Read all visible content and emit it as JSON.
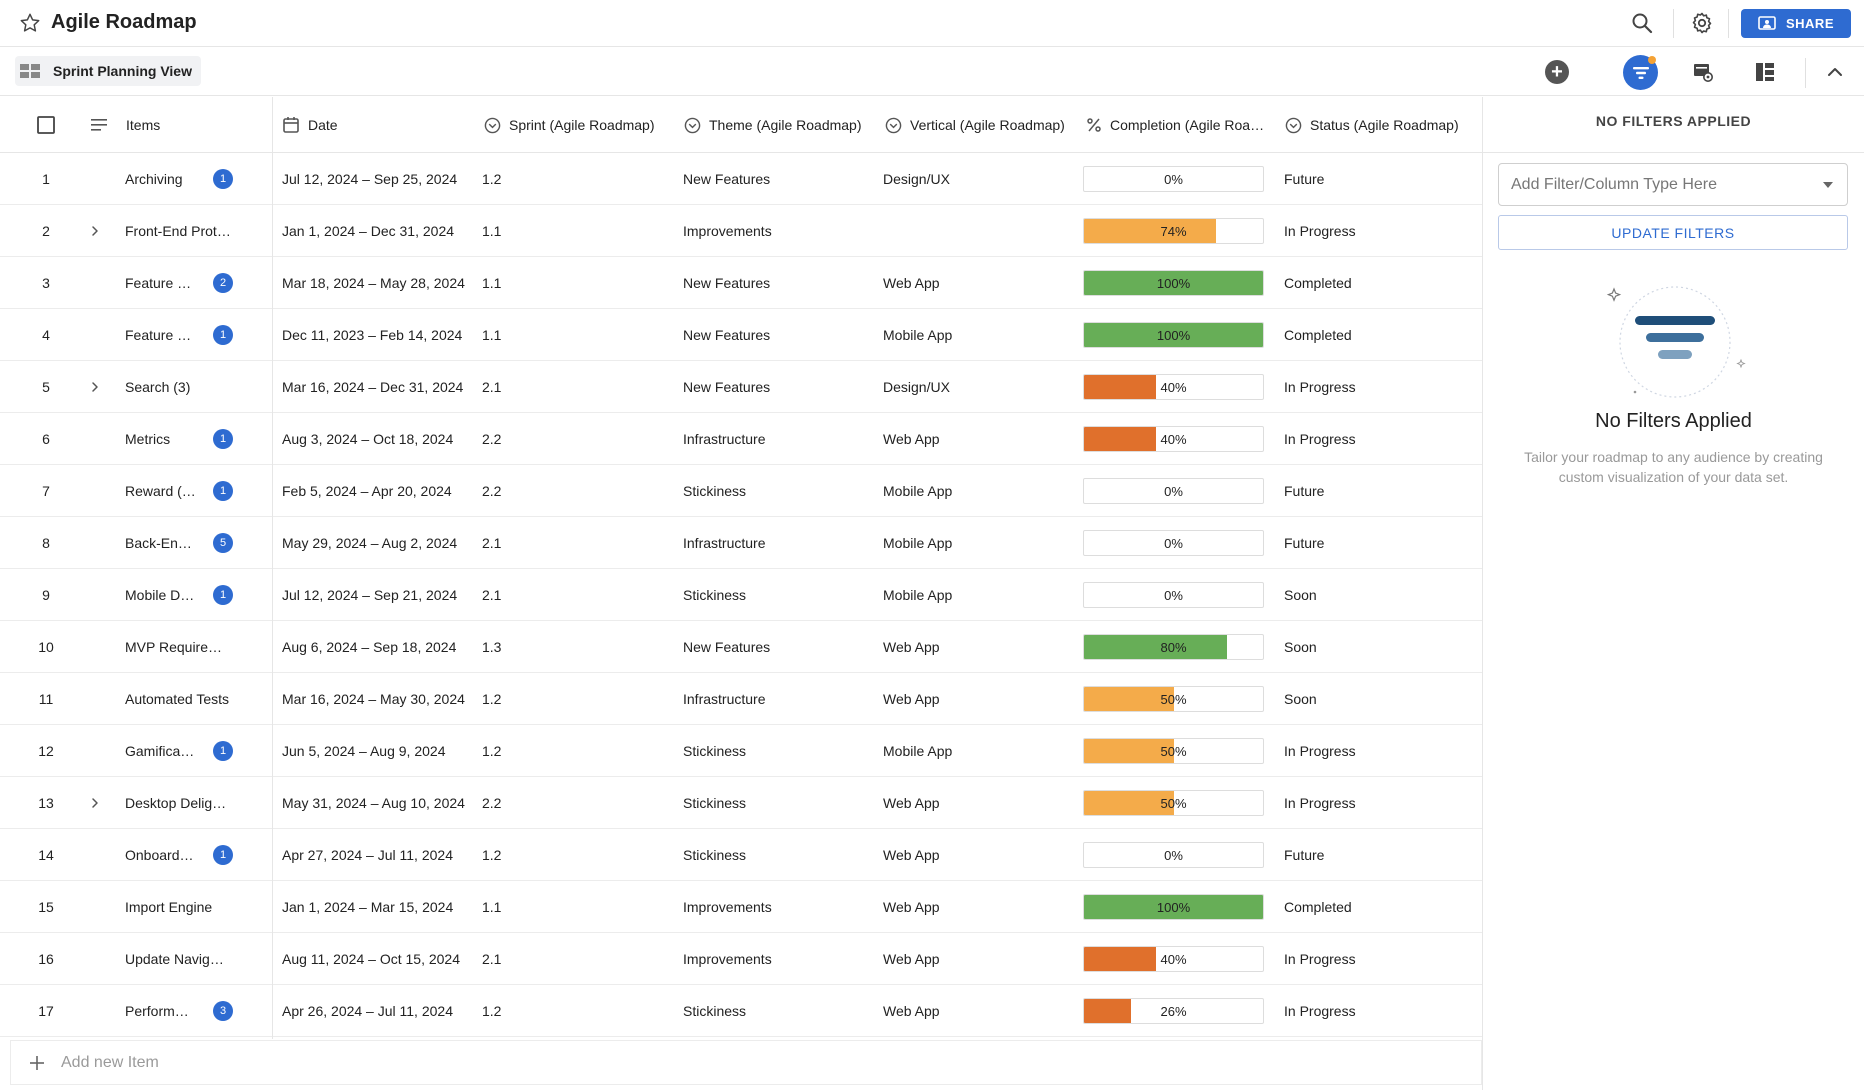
{
  "app": {
    "title": "Agile Roadmap",
    "share_label": "SHARE"
  },
  "toolbar": {
    "view_name": "Sprint Planning View"
  },
  "columns": {
    "items": "Items",
    "date": "Date",
    "sprint": "Sprint (Agile Roadmap)",
    "theme": "Theme (Agile Roadmap)",
    "vertical": "Vertical (Agile Roadmap)",
    "completion": "Completion (Agile Roa…",
    "status": "Status (Agile Roadmap)"
  },
  "rows": [
    {
      "num": "1",
      "expand": false,
      "item": "Archiving",
      "badge": "1",
      "date": "Jul 12, 2024 – Sep 25, 2024",
      "sprint": "1.2",
      "theme": "New Features",
      "vertical": "Design/UX",
      "completion": 0,
      "completion_label": "0%",
      "color": "",
      "status": "Future"
    },
    {
      "num": "2",
      "expand": true,
      "item": "Front-End Prot…",
      "badge": "",
      "date": "Jan 1, 2024 – Dec 31, 2024",
      "sprint": "1.1",
      "theme": "Improvements",
      "vertical": "",
      "completion": 74,
      "completion_label": "74%",
      "color": "#f4ab4a",
      "status": "In Progress"
    },
    {
      "num": "3",
      "expand": false,
      "item": "Feature …",
      "badge": "2",
      "date": "Mar 18, 2024 – May 28, 2024",
      "sprint": "1.1",
      "theme": "New Features",
      "vertical": "Web App",
      "completion": 100,
      "completion_label": "100%",
      "color": "#67ae57",
      "status": "Completed"
    },
    {
      "num": "4",
      "expand": false,
      "item": "Feature …",
      "badge": "1",
      "date": "Dec 11, 2023 – Feb 14, 2024",
      "sprint": "1.1",
      "theme": "New Features",
      "vertical": "Mobile App",
      "completion": 100,
      "completion_label": "100%",
      "color": "#67ae57",
      "status": "Completed"
    },
    {
      "num": "5",
      "expand": true,
      "item": "Search (3)",
      "badge": "",
      "date": "Mar 16, 2024 – Dec 31, 2024",
      "sprint": "2.1",
      "theme": "New Features",
      "vertical": "Design/UX",
      "completion": 40,
      "completion_label": "40%",
      "color": "#e0702c",
      "status": "In Progress"
    },
    {
      "num": "6",
      "expand": false,
      "item": "Metrics",
      "badge": "1",
      "date": "Aug 3, 2024 – Oct 18, 2024",
      "sprint": "2.2",
      "theme": "Infrastructure",
      "vertical": "Web App",
      "completion": 40,
      "completion_label": "40%",
      "color": "#e0702c",
      "status": "In Progress"
    },
    {
      "num": "7",
      "expand": false,
      "item": "Reward (…",
      "badge": "1",
      "date": "Feb 5, 2024 – Apr 20, 2024",
      "sprint": "2.2",
      "theme": "Stickiness",
      "vertical": "Mobile App",
      "completion": 0,
      "completion_label": "0%",
      "color": "",
      "status": "Future"
    },
    {
      "num": "8",
      "expand": false,
      "item": "Back-En…",
      "badge": "5",
      "date": "May 29, 2024 – Aug 2, 2024",
      "sprint": "2.1",
      "theme": "Infrastructure",
      "vertical": "Mobile App",
      "completion": 0,
      "completion_label": "0%",
      "color": "",
      "status": "Future"
    },
    {
      "num": "9",
      "expand": false,
      "item": "Mobile D…",
      "badge": "1",
      "date": "Jul 12, 2024 – Sep 21, 2024",
      "sprint": "2.1",
      "theme": "Stickiness",
      "vertical": "Mobile App",
      "completion": 0,
      "completion_label": "0%",
      "color": "",
      "status": "Soon"
    },
    {
      "num": "10",
      "expand": false,
      "item": "MVP Require…",
      "badge": "",
      "date": "Aug 6, 2024 – Sep 18, 2024",
      "sprint": "1.3",
      "theme": "New Features",
      "vertical": "Web App",
      "completion": 80,
      "completion_label": "80%",
      "color": "#67ae57",
      "status": "Soon"
    },
    {
      "num": "11",
      "expand": false,
      "item": "Automated Tests",
      "badge": "",
      "date": "Mar 16, 2024 – May 30, 2024",
      "sprint": "1.2",
      "theme": "Infrastructure",
      "vertical": "Web App",
      "completion": 50,
      "completion_label": "50%",
      "color": "#f4ab4a",
      "status": "Soon"
    },
    {
      "num": "12",
      "expand": false,
      "item": "Gamifica…",
      "badge": "1",
      "date": "Jun 5, 2024 – Aug 9, 2024",
      "sprint": "1.2",
      "theme": "Stickiness",
      "vertical": "Mobile App",
      "completion": 50,
      "completion_label": "50%",
      "color": "#f4ab4a",
      "status": "In Progress"
    },
    {
      "num": "13",
      "expand": true,
      "item": "Desktop Delig…",
      "badge": "",
      "date": "May 31, 2024 – Aug 10, 2024",
      "sprint": "2.2",
      "theme": "Stickiness",
      "vertical": "Web App",
      "completion": 50,
      "completion_label": "50%",
      "color": "#f4ab4a",
      "status": "In Progress"
    },
    {
      "num": "14",
      "expand": false,
      "item": "Onboard…",
      "badge": "1",
      "date": "Apr 27, 2024 – Jul 11, 2024",
      "sprint": "1.2",
      "theme": "Stickiness",
      "vertical": "Web App",
      "completion": 0,
      "completion_label": "0%",
      "color": "",
      "status": "Future"
    },
    {
      "num": "15",
      "expand": false,
      "item": "Import Engine",
      "badge": "",
      "date": "Jan 1, 2024 – Mar 15, 2024",
      "sprint": "1.1",
      "theme": "Improvements",
      "vertical": "Web App",
      "completion": 100,
      "completion_label": "100%",
      "color": "#67ae57",
      "status": "Completed"
    },
    {
      "num": "16",
      "expand": false,
      "item": "Update Navig…",
      "badge": "",
      "date": "Aug 11, 2024 – Oct 15, 2024",
      "sprint": "2.1",
      "theme": "Improvements",
      "vertical": "Web App",
      "completion": 40,
      "completion_label": "40%",
      "color": "#e0702c",
      "status": "In Progress"
    },
    {
      "num": "17",
      "expand": false,
      "item": "Perform…",
      "badge": "3",
      "date": "Apr 26, 2024 – Jul 11, 2024",
      "sprint": "1.2",
      "theme": "Stickiness",
      "vertical": "Web App",
      "completion": 26,
      "completion_label": "26%",
      "color": "#e0702c",
      "status": "In Progress"
    }
  ],
  "add_item": {
    "placeholder": "Add new Item"
  },
  "filters": {
    "header": "NO FILTERS APPLIED",
    "select_placeholder": "Add Filter/Column Type Here",
    "update_label": "UPDATE FILTERS",
    "empty_title": "No Filters Applied",
    "empty_desc": "Tailor your roadmap to any audience by creating custom visualization of your data set."
  },
  "colors": {
    "accent": "#2e6bd1",
    "green": "#67ae57",
    "orange": "#e0702c",
    "amber": "#f4ab4a",
    "notify": "#f4a235"
  }
}
